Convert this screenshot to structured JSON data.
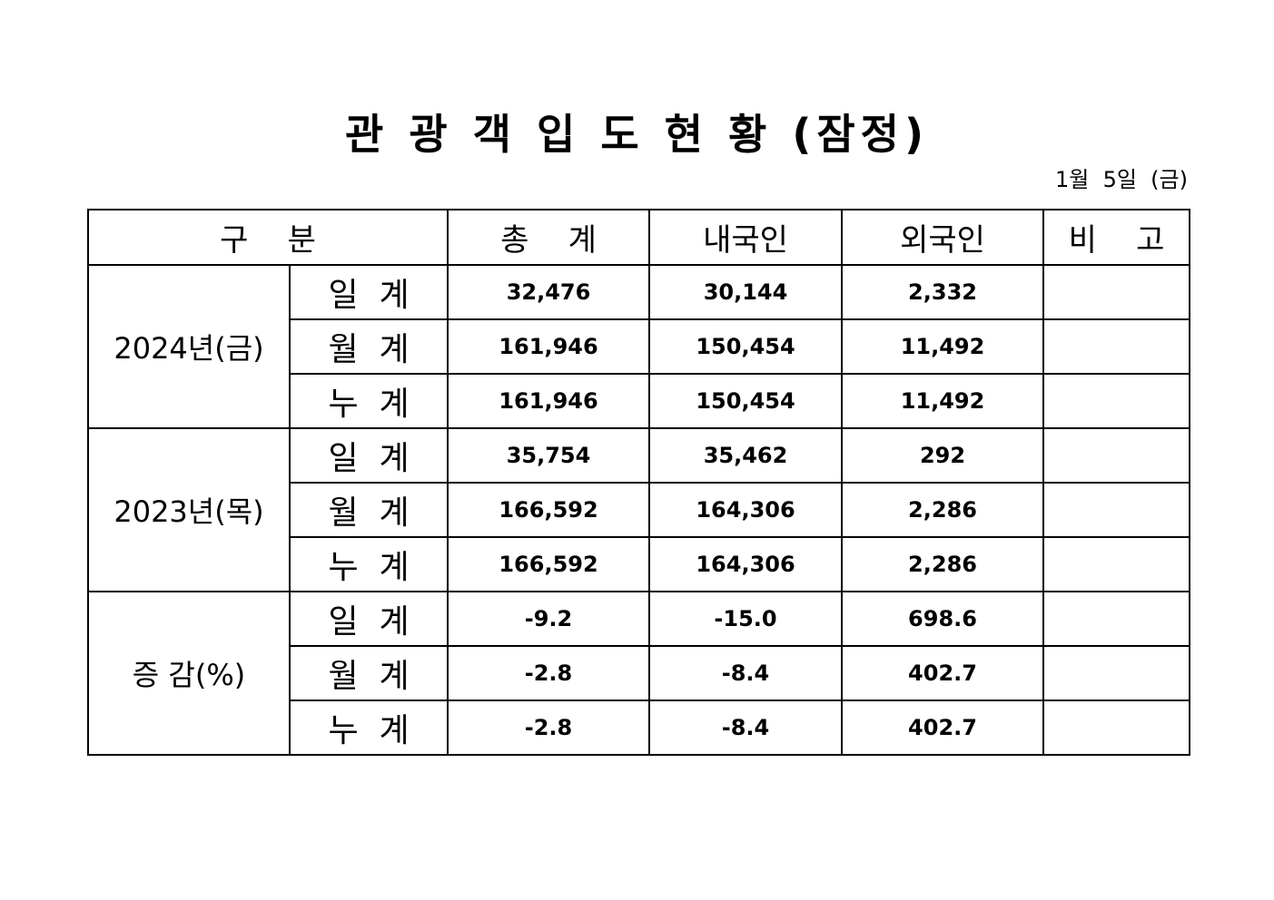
{
  "title": "관 광 객 입 도 현 황 (잠정)",
  "date": "1월  5일  (금)",
  "table": {
    "headers": [
      "구    분",
      "총    계",
      "내국인",
      "외국인",
      "비    고"
    ],
    "groups": [
      {
        "label": "2024년(금)",
        "rows": [
          {
            "label": "일  계",
            "total": "32,476",
            "domestic": "30,144",
            "foreign": "2,332",
            "note": ""
          },
          {
            "label": "월  계",
            "total": "161,946",
            "domestic": "150,454",
            "foreign": "11,492",
            "note": ""
          },
          {
            "label": "누  계",
            "total": "161,946",
            "domestic": "150,454",
            "foreign": "11,492",
            "note": ""
          }
        ]
      },
      {
        "label": "2023년(목)",
        "rows": [
          {
            "label": "일  계",
            "total": "35,754",
            "domestic": "35,462",
            "foreign": "292",
            "note": ""
          },
          {
            "label": "월  계",
            "total": "166,592",
            "domestic": "164,306",
            "foreign": "2,286",
            "note": ""
          },
          {
            "label": "누  계",
            "total": "166,592",
            "domestic": "164,306",
            "foreign": "2,286",
            "note": ""
          }
        ]
      },
      {
        "label": "증  감(%)",
        "rows": [
          {
            "label": "일  계",
            "total": "-9.2",
            "domestic": "-15.0",
            "foreign": "698.6",
            "note": ""
          },
          {
            "label": "월  계",
            "total": "-2.8",
            "domestic": "-8.4",
            "foreign": "402.7",
            "note": ""
          },
          {
            "label": "누  계",
            "total": "-2.8",
            "domestic": "-8.4",
            "foreign": "402.7",
            "note": ""
          }
        ]
      }
    ]
  }
}
